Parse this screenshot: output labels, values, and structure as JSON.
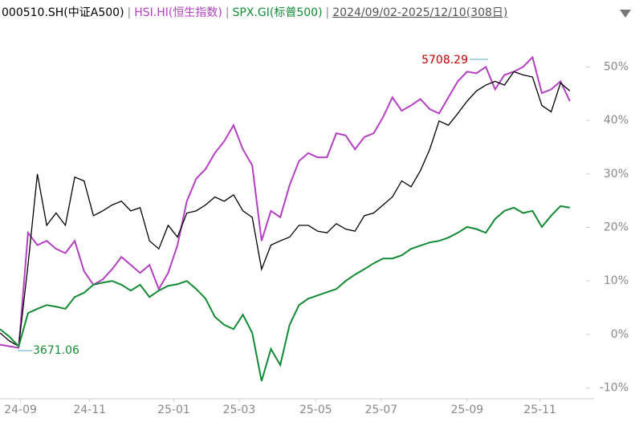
{
  "chart_data": {
    "type": "line",
    "separator": "|",
    "date_range": "2024/09/02-2025/12/10(308日)",
    "series": [
      {
        "name": "000510.SH(中证A500)",
        "color": "#000000",
        "values": [
          0.3,
          -1.2,
          -2.2,
          13,
          30,
          20.4,
          22.7,
          20.4,
          29.4,
          28.7,
          22.2,
          23.1,
          24.2,
          24.9,
          23.1,
          23.7,
          17.5,
          16,
          20.4,
          18.2,
          22.7,
          23.1,
          24.2,
          25.7,
          24.9,
          26.1,
          23.1,
          21.9,
          12.2,
          16.7,
          17.5,
          18.2,
          20.4,
          20.4,
          19.3,
          19,
          20.7,
          19.7,
          19.3,
          22.2,
          22.7,
          24.2,
          25.7,
          28.7,
          27.6,
          30.6,
          34.6,
          39.9,
          39.1,
          41.3,
          43.6,
          45.5,
          46.6,
          47.3,
          46.6,
          49.1,
          48.5,
          48.1,
          42.8,
          41.6,
          47,
          45.5
        ]
      },
      {
        "name": "HSI.HI(恒生指数)",
        "color": "#b340c0",
        "values": [
          -1.9,
          -2.2,
          -2.5,
          19,
          16.7,
          17.5,
          16,
          15.2,
          17.5,
          11.8,
          9.3,
          10.3,
          12.2,
          14.5,
          13,
          11.5,
          13,
          8.5,
          11.5,
          16.7,
          24.9,
          29.1,
          30.9,
          33.9,
          36.1,
          39.1,
          34.6,
          31.6,
          17.5,
          23.1,
          21.9,
          27.9,
          32.4,
          33.9,
          33.1,
          33.1,
          37.6,
          37.2,
          34.6,
          36.9,
          37.6,
          40.6,
          44.3,
          41.8,
          42.8,
          44,
          42.1,
          41.3,
          44.3,
          47.3,
          49.1,
          48.8,
          50,
          45.8,
          48.5,
          49.1,
          50,
          51.8,
          45.1,
          45.8,
          47.3,
          43.6
        ]
      },
      {
        "name": "SPX.GI(标普500)",
        "color": "#128a35",
        "values": [
          1,
          -0.4,
          -2.2,
          4,
          4.8,
          5.5,
          5.2,
          4.8,
          7,
          7.8,
          9.3,
          9.7,
          10,
          9.3,
          8.2,
          9.3,
          7,
          8.2,
          9.1,
          9.4,
          10,
          8.5,
          6.7,
          3.3,
          1.8,
          1,
          3.7,
          0.3,
          -8.7,
          -2.7,
          -5.7,
          1.8,
          5.5,
          6.7,
          7.3,
          7.9,
          8.5,
          10,
          11.2,
          12.2,
          13.3,
          14.2,
          14.2,
          14.8,
          16,
          16.6,
          17.2,
          17.5,
          18.1,
          19,
          20.1,
          19.7,
          19,
          21.6,
          23.1,
          23.7,
          22.7,
          23.1,
          20.1,
          22.2,
          24,
          23.7
        ]
      }
    ],
    "annotations": [
      {
        "text": "5708.29",
        "color": "#c00000"
      },
      {
        "text": "3671.06",
        "color": "#128a35"
      }
    ],
    "xlim": [
      0,
      62.3
    ],
    "xticks": [
      {
        "value": 2.2,
        "label": "24-09"
      },
      {
        "value": 9.6,
        "label": "24-11"
      },
      {
        "value": 18.6,
        "label": "25-01"
      },
      {
        "value": 25.6,
        "label": "25-03"
      },
      {
        "value": 33.8,
        "label": "25-05"
      },
      {
        "value": 40.8,
        "label": "25-07"
      },
      {
        "value": 50,
        "label": "25-09"
      },
      {
        "value": 57.8,
        "label": "25-11"
      }
    ],
    "ylim": [
      -12,
      58
    ],
    "yticks": [
      {
        "value": 50,
        "label": "50%"
      },
      {
        "value": 40,
        "label": "40%"
      },
      {
        "value": 30,
        "label": "30%"
      },
      {
        "value": 20,
        "label": "20%"
      },
      {
        "value": 10,
        "label": "10%"
      },
      {
        "value": 0,
        "label": "0%"
      },
      {
        "value": -10,
        "label": "-10%"
      }
    ]
  }
}
